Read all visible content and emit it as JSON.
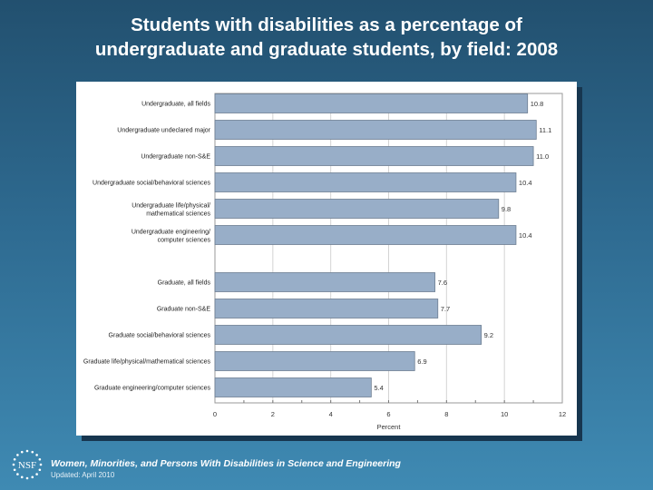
{
  "title_line1": "Students with disabilities as a percentage of",
  "title_line2": "undergraduate and graduate students, by field: 2008",
  "footer": {
    "publication": "Women, Minorities, and Persons With Disabilities in Science and Engineering",
    "updated": "Updated: April 2010",
    "logo_text": "NSF"
  },
  "colors": {
    "bar": "#98aec8",
    "bar_border": "#6d7e92",
    "background_top": "#22506f",
    "background_bottom": "#3f8ab3"
  },
  "chart_data": {
    "type": "bar",
    "orientation": "horizontal",
    "title": "Students with disabilities as a percentage of undergraduate and graduate students, by field: 2008",
    "xlabel": "Percent",
    "xlim": [
      0,
      12
    ],
    "xticks": [
      "0",
      "2",
      "4",
      "6",
      "8",
      "10",
      "12"
    ],
    "grid": true,
    "groups": [
      {
        "categories": [
          "Undergraduate, all fields",
          "Undergraduate undeclared major",
          "Undergraduate non-S&E",
          "Undergraduate social/behavioral sciences",
          "Undergraduate life/physical/ mathematical sciences",
          "Undergraduate engineering/ computer sciences"
        ],
        "values": [
          10.8,
          11.1,
          11.0,
          10.4,
          9.8,
          10.4
        ],
        "labels": [
          "10.8",
          "11.1",
          "11.0",
          "10.4",
          "9.8",
          "10.4"
        ]
      },
      {
        "categories": [
          "Graduate, all fields",
          "Graduate non-S&E",
          "Graduate social/behavioral sciences",
          "Graduate life/physical/mathematical sciences",
          "Graduate engineering/computer sciences"
        ],
        "values": [
          7.6,
          7.7,
          9.2,
          6.9,
          5.4
        ],
        "labels": [
          "7.6",
          "7.7",
          "9.2",
          "6.9",
          "5.4"
        ]
      }
    ]
  }
}
